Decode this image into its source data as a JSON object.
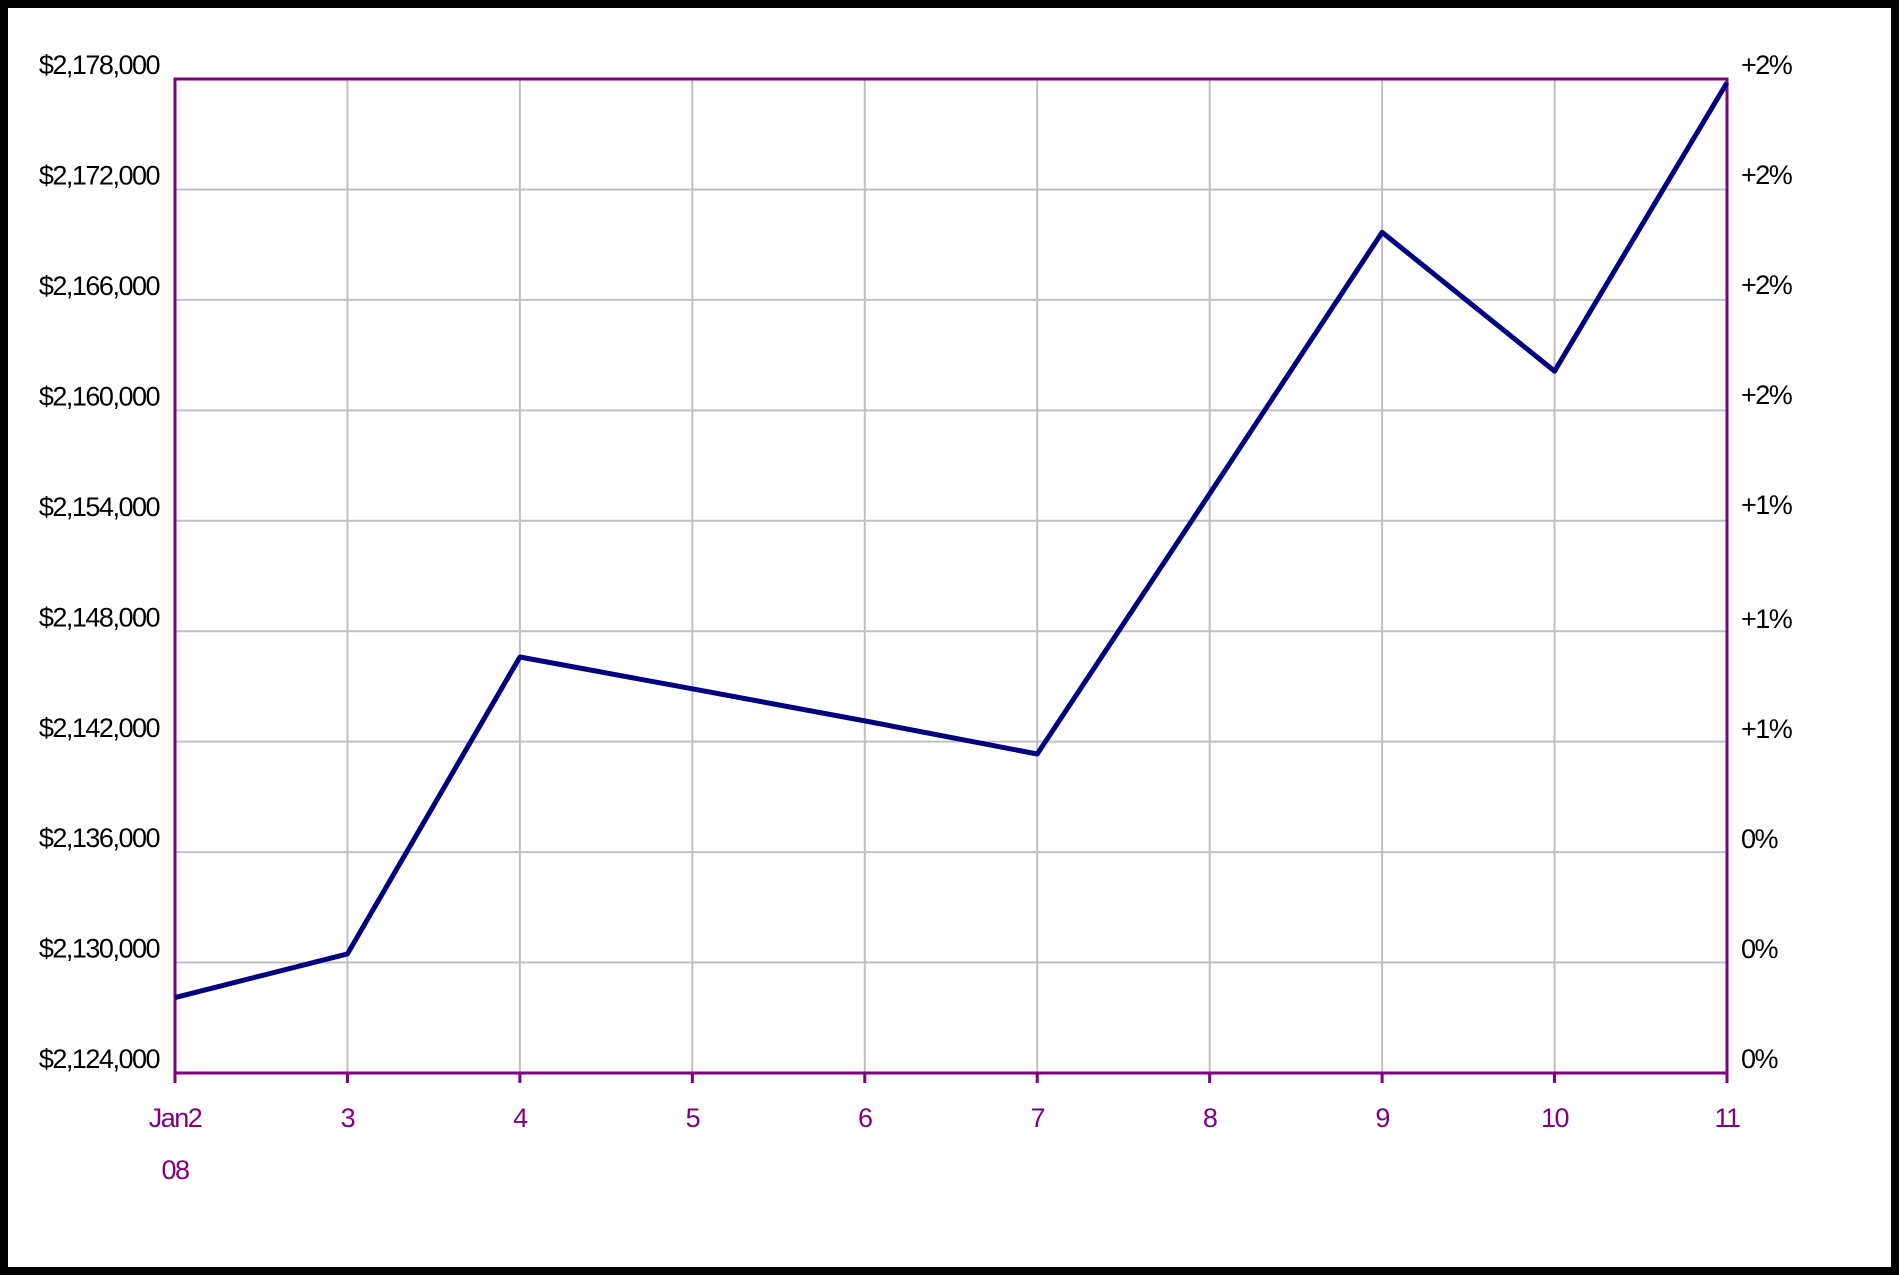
{
  "chart_data": {
    "type": "line",
    "categories": [
      "Jan2\n08",
      "3",
      "4",
      "5",
      "6",
      "7",
      "8",
      "9",
      "10",
      "11"
    ],
    "series": [
      {
        "color": "#000080",
        "values": [
          2128100,
          2130470,
          2146600,
          2144870,
          2143130,
          2141330,
          2155470,
          2169670,
          2162130,
          2177800
        ]
      }
    ],
    "ylim": [
      2124000,
      2178000
    ],
    "yticks": [
      {
        "value": 2124000,
        "label": "$2,124,000"
      },
      {
        "value": 2130000,
        "label": "$2,130,000"
      },
      {
        "value": 2136000,
        "label": "$2,136,000"
      },
      {
        "value": 2142000,
        "label": "$2,142,000"
      },
      {
        "value": 2148000,
        "label": "$2,148,000"
      },
      {
        "value": 2154000,
        "label": "$2,154,000"
      },
      {
        "value": 2160000,
        "label": "$2,160,000"
      },
      {
        "value": 2166000,
        "label": "$2,166,000"
      },
      {
        "value": 2172000,
        "label": "$2,172,000"
      },
      {
        "value": 2178000,
        "label": "$2,178,000"
      }
    ],
    "y2lim": [
      -0.16,
      2.37
    ],
    "y2ticks": [
      {
        "value": -0.16,
        "label": "0%"
      },
      {
        "value": 0.12,
        "label": "0%"
      },
      {
        "value": 0.4,
        "label": "0%"
      },
      {
        "value": 0.68,
        "label": "+1%"
      },
      {
        "value": 0.96,
        "label": "+1%"
      },
      {
        "value": 1.25,
        "label": "+1%"
      },
      {
        "value": 1.53,
        "label": "+2%"
      },
      {
        "value": 1.81,
        "label": "+2%"
      },
      {
        "value": 2.09,
        "label": "+2%"
      },
      {
        "value": 2.37,
        "label": "+2%"
      }
    ],
    "grid": true
  }
}
